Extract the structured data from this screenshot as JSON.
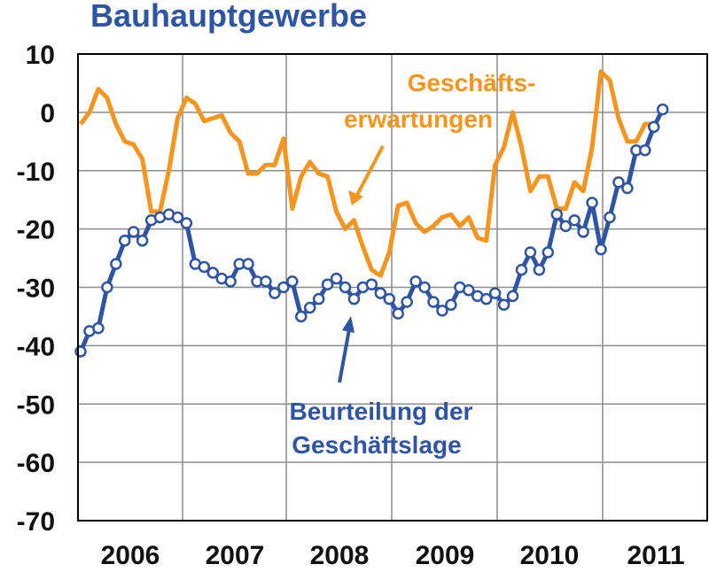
{
  "chart_data": {
    "type": "line",
    "title": "Bauhauptgewerbe",
    "ylim": [
      -70,
      10
    ],
    "y_ticks": [
      "10",
      "0",
      "-10",
      "-20",
      "-30",
      "-40",
      "-50",
      "-60",
      "-70"
    ],
    "x_year_labels": [
      "2006",
      "2007",
      "2008",
      "2009",
      "2010",
      "2011"
    ],
    "grid": true,
    "series": [
      {
        "name": "Geschäfts-erwartungen",
        "label_lines": [
          "Geschäfts-",
          "erwartungen"
        ],
        "color": "#f7941d",
        "marker": "none",
        "values": [
          -2,
          0,
          4,
          2.5,
          -2,
          -5,
          -5.5,
          -8,
          -17,
          -17,
          -10,
          -1,
          2.5,
          1.5,
          -1.5,
          -1,
          -0.5,
          -3.5,
          -5,
          -10.5,
          -10.5,
          -9,
          -9,
          -4.5,
          -16.5,
          -11,
          -8.5,
          -10.5,
          -11,
          -17,
          -20,
          -18.5,
          -23,
          -27,
          -28,
          -24,
          -16,
          -15.5,
          -19,
          -20.5,
          -19.5,
          -18,
          -17.5,
          -19.5,
          -18,
          -21.5,
          -22,
          -9,
          -6,
          0,
          -6,
          -13.5,
          -11,
          -11,
          -16.5,
          -16.5,
          -12,
          -13.5,
          -6,
          7,
          5.5,
          -1,
          -5,
          -5,
          -2,
          -2
        ]
      },
      {
        "name": "Beurteilung der Geschäftslage",
        "label_lines": [
          "Beurteilung der",
          "Geschäftslage"
        ],
        "color": "#2e55a5",
        "marker": "circle",
        "values": [
          -41,
          -37.5,
          -37,
          -30,
          -26,
          -22,
          -20.5,
          -22,
          -18.5,
          -18,
          -17.5,
          -18,
          -19,
          -26,
          -26.5,
          -27.5,
          -28.5,
          -29,
          -26,
          -26,
          -29,
          -29,
          -31,
          -30,
          -29,
          -35,
          -33.5,
          -32,
          -29.5,
          -28.5,
          -30,
          -32,
          -30,
          -29.5,
          -31,
          -32,
          -34.5,
          -32.5,
          -29,
          -30,
          -32.5,
          -34,
          -33,
          -30,
          -30.5,
          -31.5,
          -32,
          -31,
          -33,
          -31.5,
          -27,
          -24,
          -27,
          -24,
          -17.5,
          -19.5,
          -18.5,
          -20.5,
          -15.5,
          -23.5,
          -18,
          -12,
          -13,
          -6.5,
          -6.5,
          -2.5,
          0.5
        ]
      }
    ]
  }
}
